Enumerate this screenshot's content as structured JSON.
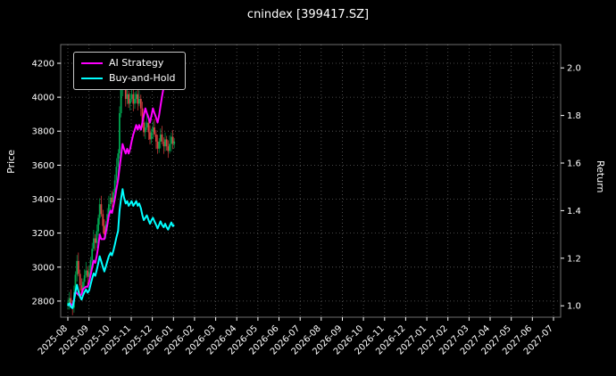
{
  "figure": {
    "title": "cnindex [399417.SZ]",
    "ylabel_left": "Price",
    "ylabel_right": "Return",
    "bg_color": "#000000",
    "text_color": "#ffffff"
  },
  "legend": {
    "items": [
      {
        "label": "AI Strategy",
        "color": "#ff00ff"
      },
      {
        "label": "Buy-and-Hold",
        "color": "#00ffff"
      }
    ]
  },
  "chart_data": {
    "type": "candlestick+line",
    "title": "cnindex [399417.SZ]",
    "grid": true,
    "legend_position": "upper-left",
    "up_color": "#00a651",
    "down_color": "#dd3f3f",
    "base_price": 2790,
    "x_axis": {
      "tick_labels": [
        "2025-08",
        "2025-09",
        "2025-10",
        "2025-11",
        "2025-12",
        "2026-01",
        "2026-02",
        "2026-03",
        "2026-04",
        "2026-05",
        "2026-06",
        "2026-07",
        "2026-08",
        "2026-09",
        "2026-10",
        "2026-11",
        "2026-12",
        "2027-01",
        "2027-02",
        "2027-03",
        "2027-04",
        "2027-05",
        "2027-06",
        "2027-07"
      ]
    },
    "price_axis": {
      "label": "Price",
      "ticks": [
        2800,
        3000,
        3200,
        3400,
        3600,
        3800,
        4000,
        4200
      ],
      "range": [
        2705,
        4310
      ]
    },
    "return_axis": {
      "label": "Return",
      "ticks": [
        1.0,
        1.2,
        1.4,
        1.6,
        1.8,
        2.0
      ],
      "range": [
        0.952,
        2.098
      ]
    },
    "candles_format": [
      "months_since_2025_08",
      "open",
      "high",
      "low",
      "close"
    ],
    "candles": [
      [
        0.0,
        2775,
        2810,
        2750,
        2790
      ],
      [
        0.07,
        2790,
        2853,
        2750,
        2818
      ],
      [
        0.14,
        2818,
        2868,
        2764,
        2779
      ],
      [
        0.22,
        2779,
        2804,
        2717,
        2762
      ],
      [
        0.29,
        2762,
        2891,
        2732,
        2851
      ],
      [
        0.36,
        2851,
        2975,
        2826,
        2955
      ],
      [
        0.43,
        2955,
        3071,
        2915,
        3036
      ],
      [
        0.5,
        3036,
        3086,
        2945,
        2960
      ],
      [
        0.58,
        2960,
        2985,
        2848,
        2893
      ],
      [
        0.65,
        2893,
        2933,
        2833,
        2863
      ],
      [
        0.72,
        2863,
        2933,
        2838,
        2913
      ],
      [
        0.79,
        2913,
        2987,
        2873,
        2952
      ],
      [
        0.86,
        2952,
        3030,
        2937,
        2980
      ],
      [
        0.94,
        2980,
        3005,
        2898,
        2943
      ],
      [
        1.01,
        2943,
        3011,
        2913,
        2971
      ],
      [
        1.08,
        2971,
        3061,
        2946,
        3041
      ],
      [
        1.15,
        3041,
        3143,
        3001,
        3108
      ],
      [
        1.22,
        3108,
        3219,
        3093,
        3169
      ],
      [
        1.3,
        3169,
        3194,
        3097,
        3142
      ],
      [
        1.37,
        3142,
        3251,
        3112,
        3211
      ],
      [
        1.44,
        3211,
        3309,
        3186,
        3289
      ],
      [
        1.51,
        3289,
        3405,
        3249,
        3370
      ],
      [
        1.58,
        3370,
        3420,
        3297,
        3312
      ],
      [
        1.66,
        3312,
        3337,
        3197,
        3242
      ],
      [
        1.73,
        3242,
        3282,
        3162,
        3192
      ],
      [
        1.8,
        3192,
        3270,
        3167,
        3250
      ],
      [
        1.87,
        3250,
        3347,
        3210,
        3312
      ],
      [
        1.94,
        3312,
        3420,
        3297,
        3370
      ],
      [
        2.02,
        3370,
        3434,
        3325,
        3409
      ],
      [
        2.09,
        3409,
        3449,
        3351,
        3381
      ],
      [
        2.16,
        3381,
        3460,
        3356,
        3440
      ],
      [
        2.23,
        3440,
        3545,
        3400,
        3510
      ],
      [
        2.3,
        3510,
        3641,
        3495,
        3591
      ],
      [
        2.38,
        3591,
        3694,
        3546,
        3669
      ],
      [
        2.45,
        3669,
        3946,
        3639,
        3906
      ],
      [
        2.52,
        3906,
        4066,
        3881,
        4046
      ],
      [
        2.59,
        4046,
        4192,
        4006,
        4157
      ],
      [
        2.66,
        4157,
        4207,
        4045,
        4060
      ],
      [
        2.74,
        4060,
        4085,
        3945,
        3990
      ],
      [
        2.81,
        3990,
        4058,
        3960,
        4018
      ],
      [
        2.88,
        4018,
        4038,
        3937,
        3962
      ],
      [
        2.95,
        3962,
        4025,
        3922,
        3990
      ],
      [
        3.02,
        3990,
        4068,
        3975,
        4018
      ],
      [
        3.1,
        4018,
        4043,
        3917,
        3962
      ],
      [
        3.17,
        3962,
        4030,
        3932,
        3990
      ],
      [
        3.24,
        3990,
        4038,
        3965,
        4018
      ],
      [
        3.31,
        4018,
        4053,
        3922,
        3962
      ],
      [
        3.38,
        3962,
        4040,
        3947,
        3990
      ],
      [
        3.46,
        3990,
        4015,
        3889,
        3934
      ],
      [
        3.53,
        3934,
        3974,
        3820,
        3850
      ],
      [
        3.6,
        3850,
        3870,
        3769,
        3794
      ],
      [
        3.67,
        3794,
        3857,
        3754,
        3822
      ],
      [
        3.74,
        3822,
        3900,
        3807,
        3850
      ],
      [
        3.82,
        3850,
        3875,
        3749,
        3794
      ],
      [
        3.89,
        3794,
        3834,
        3722,
        3752
      ],
      [
        3.96,
        3752,
        3814,
        3727,
        3794
      ],
      [
        4.03,
        3794,
        3857,
        3754,
        3822
      ],
      [
        4.1,
        3822,
        3872,
        3766,
        3781
      ],
      [
        4.18,
        3781,
        3806,
        3694,
        3739
      ],
      [
        4.25,
        3739,
        3779,
        3667,
        3697
      ],
      [
        4.32,
        3697,
        3759,
        3672,
        3739
      ],
      [
        4.39,
        3739,
        3816,
        3699,
        3781
      ],
      [
        4.46,
        3781,
        3831,
        3724,
        3739
      ],
      [
        4.54,
        3739,
        3764,
        3666,
        3711
      ],
      [
        4.61,
        3711,
        3792,
        3681,
        3752
      ],
      [
        4.68,
        3752,
        3772,
        3686,
        3711
      ],
      [
        4.75,
        3711,
        3746,
        3643,
        3683
      ],
      [
        4.82,
        3683,
        3775,
        3668,
        3725
      ],
      [
        4.9,
        3725,
        3792,
        3680,
        3767
      ],
      [
        4.97,
        3767,
        3807,
        3695,
        3725
      ],
      [
        5.04,
        3725,
        3759,
        3700,
        3739
      ]
    ],
    "series": [
      {
        "name": "AI Strategy",
        "axis": "return",
        "color": "#ff00ff",
        "points": [
          [
            0.0,
            1.0
          ],
          [
            0.1,
            1.01
          ],
          [
            0.22,
            1.0
          ],
          [
            0.3,
            1.03
          ],
          [
            0.36,
            1.06
          ],
          [
            0.45,
            1.05
          ],
          [
            0.58,
            1.04
          ],
          [
            0.65,
            1.05
          ],
          [
            0.72,
            1.07
          ],
          [
            0.86,
            1.08
          ],
          [
            0.94,
            1.08
          ],
          [
            1.01,
            1.1
          ],
          [
            1.08,
            1.13
          ],
          [
            1.15,
            1.16
          ],
          [
            1.22,
            1.19
          ],
          [
            1.3,
            1.18
          ],
          [
            1.37,
            1.21
          ],
          [
            1.44,
            1.25
          ],
          [
            1.51,
            1.3
          ],
          [
            1.58,
            1.28
          ],
          [
            1.66,
            1.28
          ],
          [
            1.73,
            1.28
          ],
          [
            1.8,
            1.31
          ],
          [
            1.87,
            1.34
          ],
          [
            1.94,
            1.38
          ],
          [
            2.02,
            1.4
          ],
          [
            2.09,
            1.39
          ],
          [
            2.16,
            1.42
          ],
          [
            2.23,
            1.45
          ],
          [
            2.3,
            1.49
          ],
          [
            2.38,
            1.53
          ],
          [
            2.45,
            1.58
          ],
          [
            2.52,
            1.63
          ],
          [
            2.59,
            1.68
          ],
          [
            2.66,
            1.66
          ],
          [
            2.74,
            1.64
          ],
          [
            2.81,
            1.66
          ],
          [
            2.88,
            1.64
          ],
          [
            2.95,
            1.66
          ],
          [
            3.02,
            1.69
          ],
          [
            3.1,
            1.72
          ],
          [
            3.17,
            1.74
          ],
          [
            3.24,
            1.76
          ],
          [
            3.31,
            1.74
          ],
          [
            3.38,
            1.76
          ],
          [
            3.46,
            1.74
          ],
          [
            3.53,
            1.77
          ],
          [
            3.6,
            1.8
          ],
          [
            3.67,
            1.83
          ],
          [
            3.74,
            1.81
          ],
          [
            3.82,
            1.79
          ],
          [
            3.89,
            1.77
          ],
          [
            3.96,
            1.8
          ],
          [
            4.03,
            1.83
          ],
          [
            4.1,
            1.81
          ],
          [
            4.18,
            1.79
          ],
          [
            4.25,
            1.77
          ],
          [
            4.32,
            1.8
          ],
          [
            4.39,
            1.84
          ],
          [
            4.46,
            1.88
          ],
          [
            4.54,
            1.92
          ],
          [
            4.61,
            1.96
          ],
          [
            4.68,
            2.0
          ],
          [
            4.75,
            2.02
          ],
          [
            4.82,
            1.99
          ],
          [
            4.9,
            2.01
          ],
          [
            4.97,
            2.03
          ]
        ]
      },
      {
        "name": "Buy-and-Hold",
        "axis": "return",
        "color": "#00ffff",
        "points": [
          [
            0.0,
            1.0
          ],
          [
            0.07,
            1.01
          ],
          [
            0.14,
            0.996
          ],
          [
            0.22,
            0.99
          ],
          [
            0.29,
            1.022
          ],
          [
            0.36,
            1.059
          ],
          [
            0.43,
            1.088
          ],
          [
            0.5,
            1.061
          ],
          [
            0.58,
            1.037
          ],
          [
            0.65,
            1.026
          ],
          [
            0.72,
            1.044
          ],
          [
            0.79,
            1.058
          ],
          [
            0.86,
            1.068
          ],
          [
            0.94,
            1.055
          ],
          [
            1.01,
            1.065
          ],
          [
            1.08,
            1.09
          ],
          [
            1.15,
            1.114
          ],
          [
            1.22,
            1.136
          ],
          [
            1.3,
            1.126
          ],
          [
            1.37,
            1.151
          ],
          [
            1.44,
            1.179
          ],
          [
            1.51,
            1.208
          ],
          [
            1.58,
            1.187
          ],
          [
            1.66,
            1.162
          ],
          [
            1.73,
            1.144
          ],
          [
            1.8,
            1.165
          ],
          [
            1.87,
            1.187
          ],
          [
            1.94,
            1.208
          ],
          [
            2.02,
            1.222
          ],
          [
            2.09,
            1.212
          ],
          [
            2.16,
            1.233
          ],
          [
            2.23,
            1.258
          ],
          [
            2.3,
            1.287
          ],
          [
            2.38,
            1.315
          ],
          [
            2.45,
            1.4
          ],
          [
            2.52,
            1.45
          ],
          [
            2.59,
            1.49
          ],
          [
            2.66,
            1.455
          ],
          [
            2.74,
            1.43
          ],
          [
            2.81,
            1.44
          ],
          [
            2.88,
            1.42
          ],
          [
            2.95,
            1.43
          ],
          [
            3.02,
            1.44
          ],
          [
            3.1,
            1.42
          ],
          [
            3.17,
            1.43
          ],
          [
            3.24,
            1.44
          ],
          [
            3.31,
            1.42
          ],
          [
            3.38,
            1.43
          ],
          [
            3.46,
            1.41
          ],
          [
            3.53,
            1.38
          ],
          [
            3.6,
            1.36
          ],
          [
            3.67,
            1.37
          ],
          [
            3.74,
            1.38
          ],
          [
            3.82,
            1.36
          ],
          [
            3.89,
            1.345
          ],
          [
            3.96,
            1.36
          ],
          [
            4.03,
            1.37
          ],
          [
            4.1,
            1.355
          ],
          [
            4.18,
            1.34
          ],
          [
            4.25,
            1.325
          ],
          [
            4.32,
            1.34
          ],
          [
            4.39,
            1.355
          ],
          [
            4.46,
            1.34
          ],
          [
            4.54,
            1.33
          ],
          [
            4.61,
            1.345
          ],
          [
            4.68,
            1.33
          ],
          [
            4.75,
            1.32
          ],
          [
            4.82,
            1.335
          ],
          [
            4.9,
            1.35
          ],
          [
            4.97,
            1.335
          ],
          [
            5.04,
            1.34
          ]
        ]
      }
    ]
  }
}
